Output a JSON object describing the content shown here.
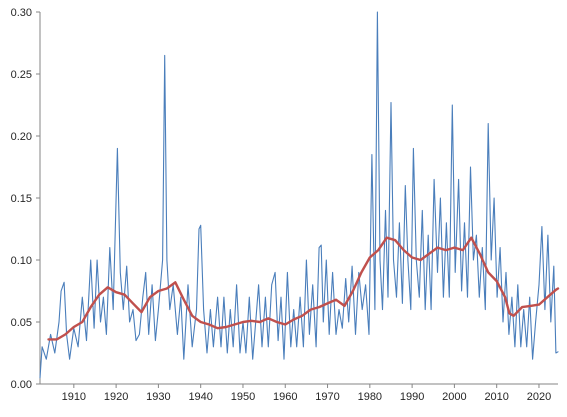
{
  "chart_data": {
    "type": "line",
    "title": "",
    "xlabel": "",
    "ylabel": "",
    "xlim": [
      1902,
      2024.5
    ],
    "ylim": [
      0,
      0.3
    ],
    "grid": false,
    "legend": "none",
    "x_ticks": [
      1910,
      1920,
      1930,
      1940,
      1950,
      1960,
      1970,
      1980,
      1990,
      2000,
      2010,
      2020
    ],
    "x_tick_labels": [
      "1910",
      "1920",
      "1930",
      "1940",
      "1950",
      "1960",
      "1970",
      "1980",
      "1990",
      "2000",
      "2010",
      "2020"
    ],
    "y_ticks": [
      0,
      0.05,
      0.1,
      0.15,
      0.2,
      0.25,
      0.3
    ],
    "y_tick_labels": [
      "0.00",
      "0.05",
      "0.10",
      "0.15",
      "0.20",
      "0.25",
      "0.30"
    ],
    "series": [
      {
        "color": "#4a7ebb",
        "style": "raw",
        "points": [
          [
            1902,
            0.005
          ],
          [
            1902.5,
            0.03
          ],
          [
            1903.5,
            0.02
          ],
          [
            1904.5,
            0.04
          ],
          [
            1905.5,
            0.025
          ],
          [
            1906.5,
            0.05
          ],
          [
            1907,
            0.075
          ],
          [
            1907.7,
            0.082
          ],
          [
            1908.3,
            0.04
          ],
          [
            1909,
            0.02
          ],
          [
            1910,
            0.045
          ],
          [
            1911,
            0.03
          ],
          [
            1912,
            0.07
          ],
          [
            1913,
            0.035
          ],
          [
            1914,
            0.1
          ],
          [
            1914.8,
            0.045
          ],
          [
            1915.5,
            0.1
          ],
          [
            1916.3,
            0.05
          ],
          [
            1917,
            0.07
          ],
          [
            1917.7,
            0.04
          ],
          [
            1918.5,
            0.11
          ],
          [
            1919.3,
            0.06
          ],
          [
            1920.3,
            0.19
          ],
          [
            1921,
            0.09
          ],
          [
            1921.7,
            0.06
          ],
          [
            1922.5,
            0.095
          ],
          [
            1923.2,
            0.05
          ],
          [
            1924,
            0.06
          ],
          [
            1924.7,
            0.035
          ],
          [
            1925.5,
            0.04
          ],
          [
            1926.3,
            0.07
          ],
          [
            1927,
            0.09
          ],
          [
            1927.7,
            0.04
          ],
          [
            1928.5,
            0.08
          ],
          [
            1929.3,
            0.035
          ],
          [
            1930,
            0.06
          ],
          [
            1931,
            0.1
          ],
          [
            1931.5,
            0.265
          ],
          [
            1932,
            0.1
          ],
          [
            1932.7,
            0.06
          ],
          [
            1933.5,
            0.08
          ],
          [
            1934.5,
            0.04
          ],
          [
            1935.3,
            0.07
          ],
          [
            1936,
            0.02
          ],
          [
            1937,
            0.08
          ],
          [
            1938,
            0.03
          ],
          [
            1939,
            0.06
          ],
          [
            1939.6,
            0.125
          ],
          [
            1940,
            0.128
          ],
          [
            1940.7,
            0.06
          ],
          [
            1941.5,
            0.025
          ],
          [
            1942.3,
            0.06
          ],
          [
            1943,
            0.03
          ],
          [
            1944,
            0.07
          ],
          [
            1944.8,
            0.03
          ],
          [
            1945.5,
            0.07
          ],
          [
            1946.3,
            0.025
          ],
          [
            1947,
            0.06
          ],
          [
            1947.7,
            0.03
          ],
          [
            1948.5,
            0.08
          ],
          [
            1949.3,
            0.025
          ],
          [
            1950,
            0.05
          ],
          [
            1950.7,
            0.025
          ],
          [
            1951.5,
            0.07
          ],
          [
            1952.3,
            0.02
          ],
          [
            1953,
            0.05
          ],
          [
            1953.7,
            0.08
          ],
          [
            1954.5,
            0.03
          ],
          [
            1955.3,
            0.07
          ],
          [
            1956,
            0.03
          ],
          [
            1956.8,
            0.08
          ],
          [
            1957.6,
            0.09
          ],
          [
            1958.3,
            0.035
          ],
          [
            1959,
            0.07
          ],
          [
            1959.7,
            0.02
          ],
          [
            1960.5,
            0.09
          ],
          [
            1961.3,
            0.03
          ],
          [
            1962,
            0.06
          ],
          [
            1962.7,
            0.03
          ],
          [
            1963.5,
            0.07
          ],
          [
            1964.3,
            0.03
          ],
          [
            1965,
            0.1
          ],
          [
            1965.7,
            0.04
          ],
          [
            1966.5,
            0.08
          ],
          [
            1967.3,
            0.03
          ],
          [
            1968,
            0.11
          ],
          [
            1968.5,
            0.112
          ],
          [
            1969,
            0.05
          ],
          [
            1969.7,
            0.1
          ],
          [
            1970.4,
            0.04
          ],
          [
            1971.2,
            0.09
          ],
          [
            1972,
            0.04
          ],
          [
            1972.7,
            0.06
          ],
          [
            1973.5,
            0.045
          ],
          [
            1974.3,
            0.085
          ],
          [
            1975,
            0.05
          ],
          [
            1975.8,
            0.095
          ],
          [
            1976.6,
            0.04
          ],
          [
            1977.4,
            0.09
          ],
          [
            1978.2,
            0.06
          ],
          [
            1979,
            0.08
          ],
          [
            1979.8,
            0.04
          ],
          [
            1980.5,
            0.185
          ],
          [
            1981.2,
            0.06
          ],
          [
            1981.8,
            0.3
          ],
          [
            1982.4,
            0.1
          ],
          [
            1983,
            0.06
          ],
          [
            1983.7,
            0.14
          ],
          [
            1984.3,
            0.07
          ],
          [
            1985,
            0.227
          ],
          [
            1985.6,
            0.1
          ],
          [
            1986.3,
            0.07
          ],
          [
            1987,
            0.13
          ],
          [
            1987.7,
            0.065
          ],
          [
            1988.4,
            0.16
          ],
          [
            1989,
            0.1
          ],
          [
            1989.7,
            0.06
          ],
          [
            1990.3,
            0.19
          ],
          [
            1991,
            0.1
          ],
          [
            1991.7,
            0.07
          ],
          [
            1992.4,
            0.14
          ],
          [
            1993.1,
            0.06
          ],
          [
            1993.8,
            0.12
          ],
          [
            1994.5,
            0.06
          ],
          [
            1995.2,
            0.165
          ],
          [
            1996,
            0.09
          ],
          [
            1996.7,
            0.15
          ],
          [
            1997.4,
            0.07
          ],
          [
            1998.1,
            0.13
          ],
          [
            1998.8,
            0.07
          ],
          [
            1999.5,
            0.225
          ],
          [
            2000.2,
            0.09
          ],
          [
            2001,
            0.165
          ],
          [
            2001.7,
            0.075
          ],
          [
            2002.4,
            0.13
          ],
          [
            2003.1,
            0.07
          ],
          [
            2003.8,
            0.175
          ],
          [
            2004.5,
            0.1
          ],
          [
            2005.2,
            0.12
          ],
          [
            2005.9,
            0.07
          ],
          [
            2006.6,
            0.11
          ],
          [
            2007.3,
            0.06
          ],
          [
            2008,
            0.21
          ],
          [
            2008.7,
            0.1
          ],
          [
            2009.4,
            0.15
          ],
          [
            2010.1,
            0.07
          ],
          [
            2010.8,
            0.11
          ],
          [
            2011.5,
            0.05
          ],
          [
            2012.2,
            0.09
          ],
          [
            2012.9,
            0.04
          ],
          [
            2013.6,
            0.07
          ],
          [
            2014.3,
            0.03
          ],
          [
            2015,
            0.08
          ],
          [
            2015.7,
            0.03
          ],
          [
            2016.4,
            0.06
          ],
          [
            2017.1,
            0.03
          ],
          [
            2017.8,
            0.07
          ],
          [
            2018.5,
            0.02
          ],
          [
            2019.2,
            0.05
          ],
          [
            2020,
            0.08
          ],
          [
            2020.7,
            0.127
          ],
          [
            2021.4,
            0.06
          ],
          [
            2022.1,
            0.12
          ],
          [
            2022.8,
            0.05
          ],
          [
            2023.5,
            0.095
          ],
          [
            2024,
            0.025
          ],
          [
            2024.5,
            0.026
          ]
        ]
      },
      {
        "color": "#c0504d",
        "style": "moving-average",
        "points": [
          [
            1904,
            0.036
          ],
          [
            1906,
            0.036
          ],
          [
            1908,
            0.04
          ],
          [
            1910,
            0.046
          ],
          [
            1912,
            0.05
          ],
          [
            1914,
            0.062
          ],
          [
            1916,
            0.072
          ],
          [
            1918,
            0.078
          ],
          [
            1920,
            0.074
          ],
          [
            1922,
            0.072
          ],
          [
            1924,
            0.065
          ],
          [
            1926,
            0.058
          ],
          [
            1928,
            0.07
          ],
          [
            1930,
            0.075
          ],
          [
            1932,
            0.077
          ],
          [
            1934,
            0.082
          ],
          [
            1936,
            0.068
          ],
          [
            1938,
            0.055
          ],
          [
            1940,
            0.05
          ],
          [
            1942,
            0.048
          ],
          [
            1944,
            0.045
          ],
          [
            1946,
            0.046
          ],
          [
            1948,
            0.048
          ],
          [
            1950,
            0.05
          ],
          [
            1952,
            0.051
          ],
          [
            1954,
            0.05
          ],
          [
            1956,
            0.053
          ],
          [
            1958,
            0.05
          ],
          [
            1960,
            0.048
          ],
          [
            1962,
            0.052
          ],
          [
            1964,
            0.055
          ],
          [
            1966,
            0.06
          ],
          [
            1968,
            0.062
          ],
          [
            1970,
            0.065
          ],
          [
            1972,
            0.068
          ],
          [
            1974,
            0.063
          ],
          [
            1976,
            0.075
          ],
          [
            1978,
            0.09
          ],
          [
            1980,
            0.102
          ],
          [
            1982,
            0.108
          ],
          [
            1984,
            0.118
          ],
          [
            1986,
            0.116
          ],
          [
            1988,
            0.108
          ],
          [
            1990,
            0.102
          ],
          [
            1992,
            0.1
          ],
          [
            1994,
            0.105
          ],
          [
            1996,
            0.11
          ],
          [
            1998,
            0.108
          ],
          [
            2000,
            0.11
          ],
          [
            2002,
            0.108
          ],
          [
            2004,
            0.118
          ],
          [
            2006,
            0.105
          ],
          [
            2008,
            0.09
          ],
          [
            2010,
            0.083
          ],
          [
            2012,
            0.07
          ],
          [
            2013,
            0.057
          ],
          [
            2014,
            0.055
          ],
          [
            2016,
            0.062
          ],
          [
            2018,
            0.063
          ],
          [
            2020,
            0.064
          ],
          [
            2022,
            0.07
          ],
          [
            2024,
            0.076
          ],
          [
            2024.5,
            0.077
          ]
        ]
      }
    ]
  }
}
